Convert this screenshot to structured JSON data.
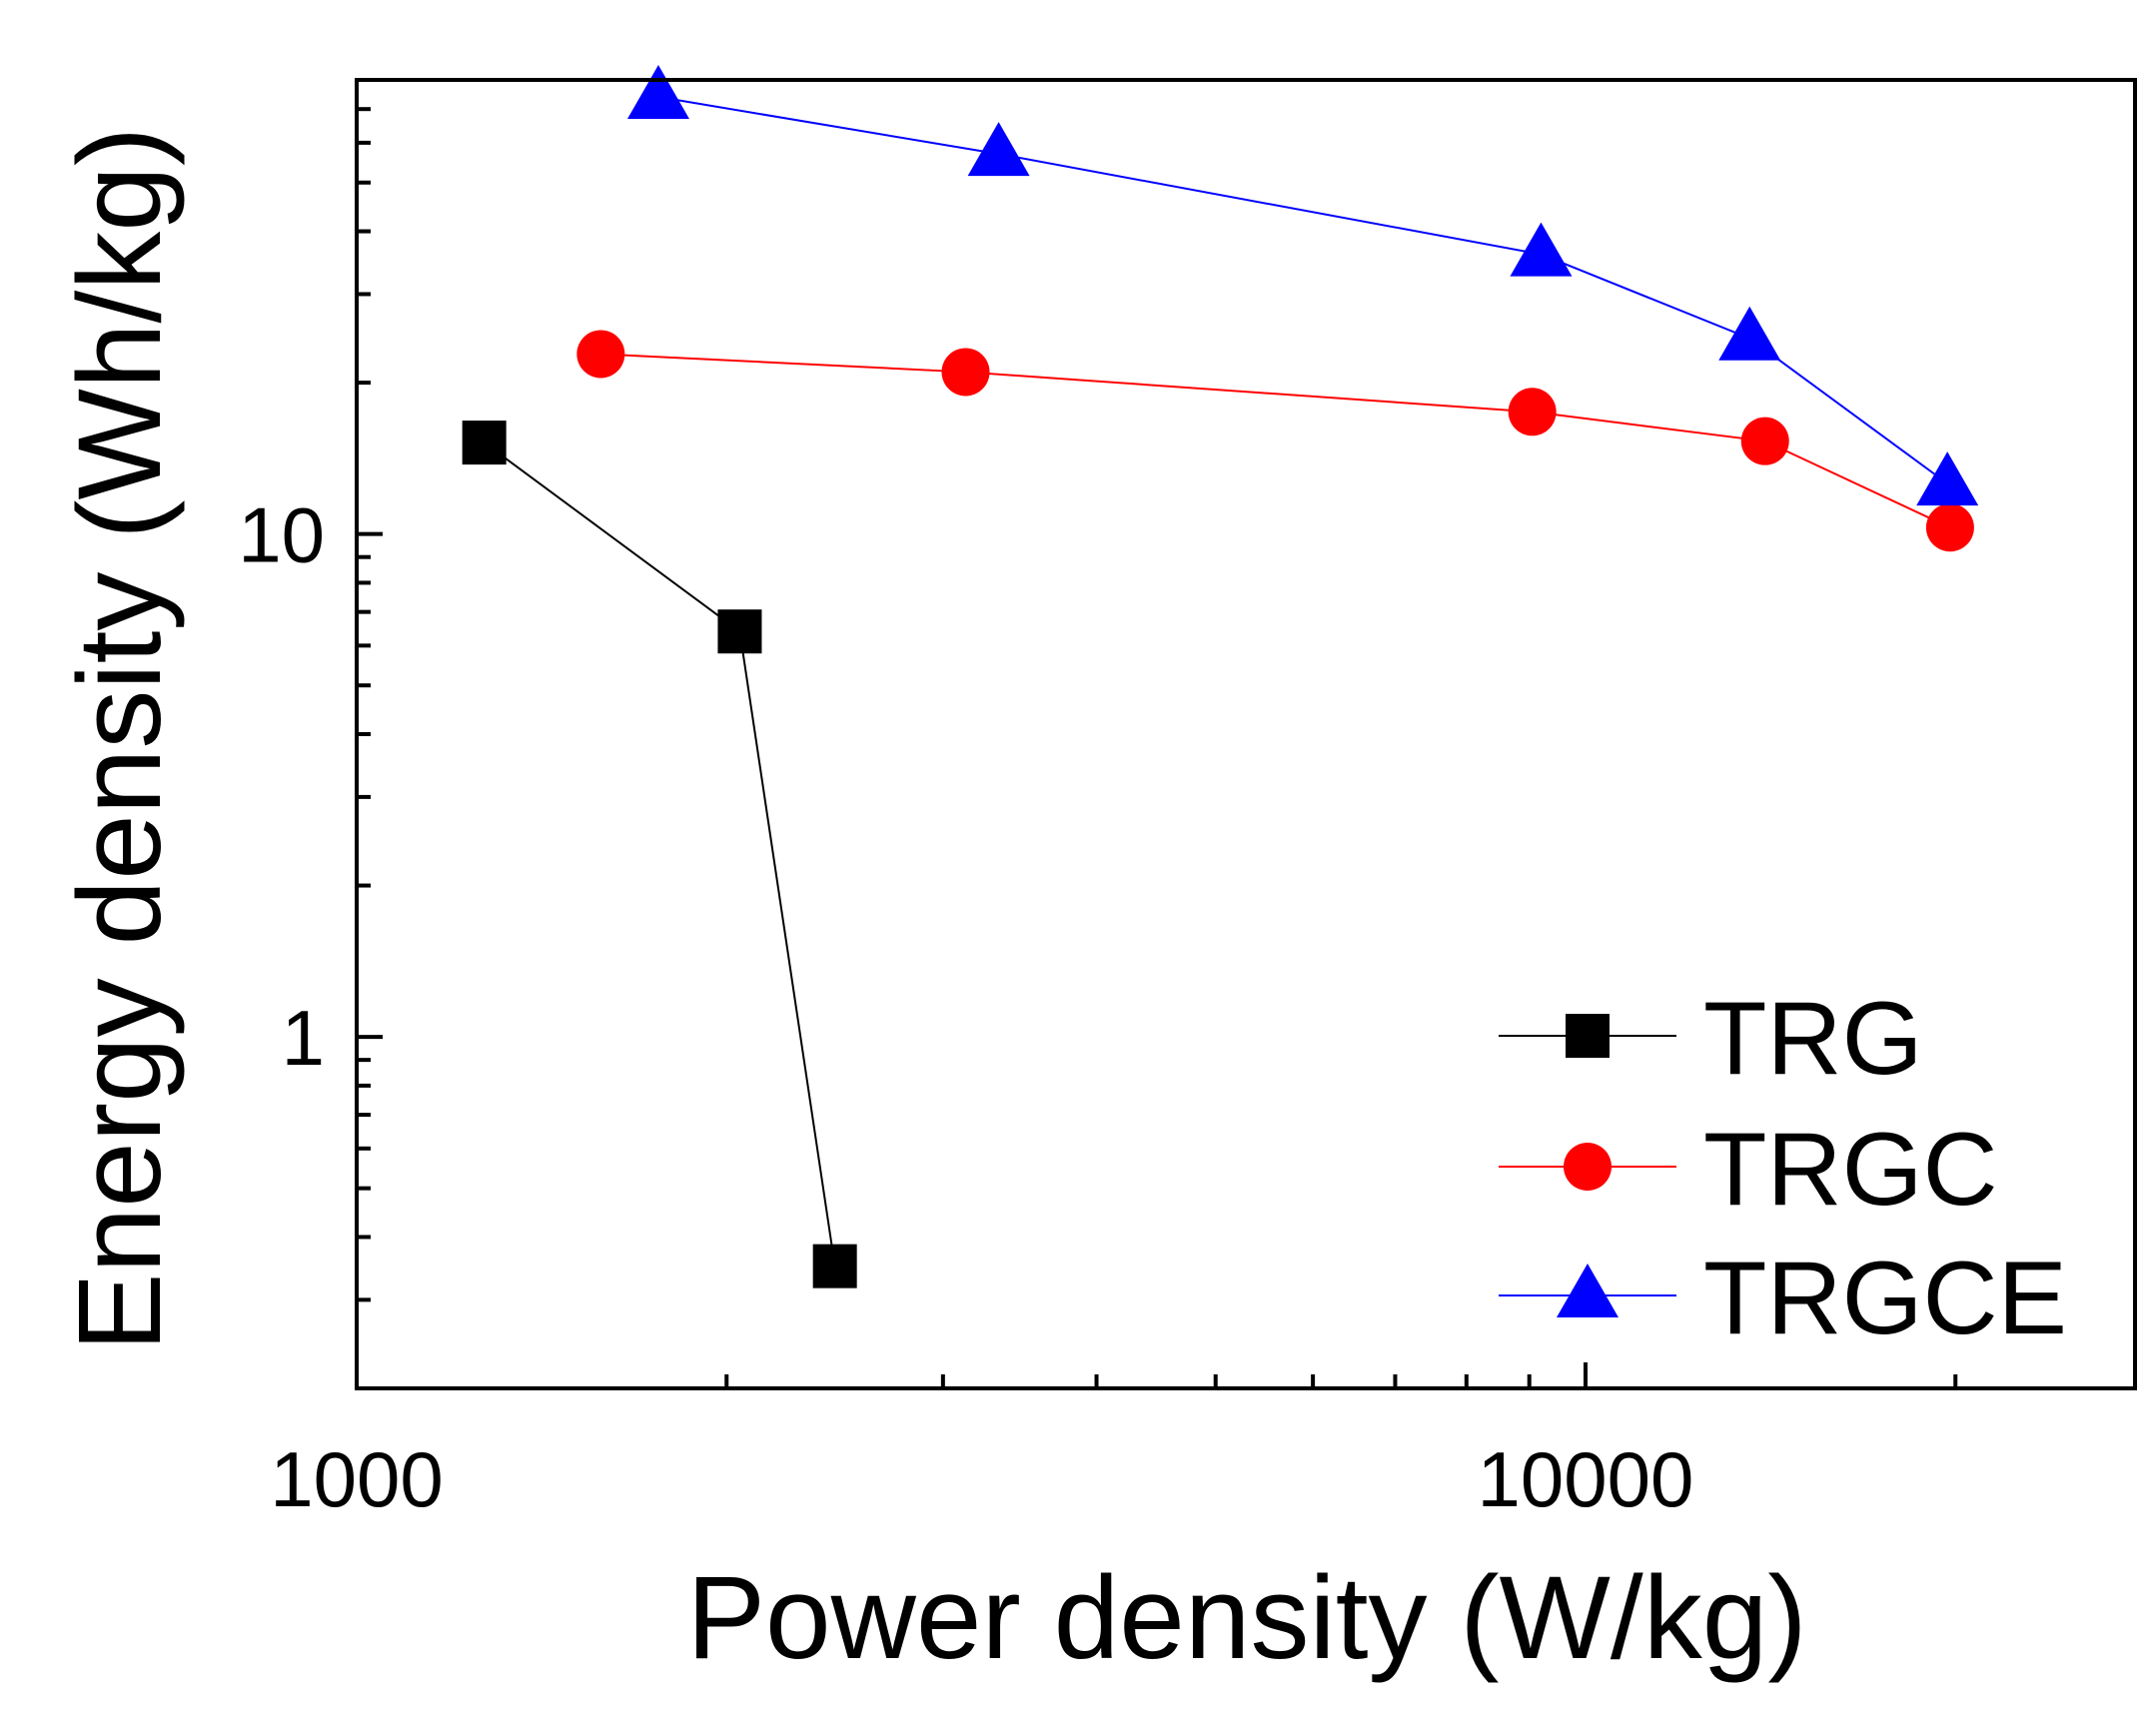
{
  "chart_data": {
    "type": "line",
    "xscale": "log",
    "yscale": "log",
    "xlabel": "Power density (W/kg)",
    "ylabel": "Energy density (Wh/kg)",
    "xlim": [
      1000,
      28000
    ],
    "ylim": [
      0.2,
      80
    ],
    "xticks": [
      {
        "value": 1000,
        "label": "1000"
      },
      {
        "value": 10000,
        "label": "10000"
      }
    ],
    "yticks": [
      {
        "value": 1,
        "label": "1"
      },
      {
        "value": 10,
        "label": "10"
      }
    ],
    "legend_position": "bottom-right",
    "series": [
      {
        "name": "TRG",
        "color": "#000000",
        "marker": "square",
        "x": [
          1270,
          2050,
          2450
        ],
        "y": [
          15.2,
          6.4,
          0.35
        ]
      },
      {
        "name": "TRGC",
        "color": "#ff0000",
        "marker": "circle",
        "x": [
          1580,
          3130,
          9050,
          14000,
          19800
        ],
        "y": [
          22.8,
          21.0,
          17.5,
          15.3,
          10.3
        ]
      },
      {
        "name": "TRGCE",
        "color": "#0000ff",
        "marker": "triangle",
        "x": [
          1760,
          3330,
          9200,
          13600,
          19700
        ],
        "y": [
          74,
          57,
          36,
          24.5,
          12.6
        ]
      }
    ]
  }
}
